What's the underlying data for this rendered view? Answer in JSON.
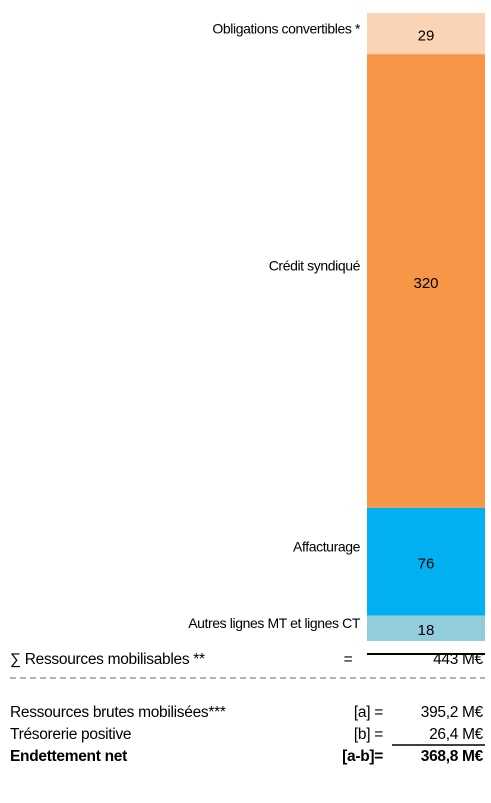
{
  "chart_data": {
    "type": "bar",
    "stacked": true,
    "series": [
      {
        "name": "Autres lignes MT et lignes CT",
        "color": "#92cddc",
        "values": [
          18
        ]
      },
      {
        "name": "Affacturage",
        "color": "#00b0f0",
        "values": [
          76
        ]
      },
      {
        "name": "Crédit syndiqué",
        "color": "#f79646",
        "values": [
          320
        ]
      },
      {
        "name": "Obligations convertibles *",
        "color": "#fad4b4",
        "values": [
          29
        ]
      }
    ]
  },
  "summary": {
    "total": {
      "label": "∑ Ressources mobilisables **",
      "op": "=",
      "value": "443 M€"
    },
    "rows": [
      {
        "label": "Ressources brutes mobilisées***",
        "op": "[a] =",
        "value": "395,2 M€"
      },
      {
        "label": "Trésorerie positive",
        "op": "[b] =",
        "value": "26,4 M€"
      },
      {
        "label": "Endettement net",
        "op": "[a-b]=",
        "value": "368,8 M€"
      }
    ]
  }
}
